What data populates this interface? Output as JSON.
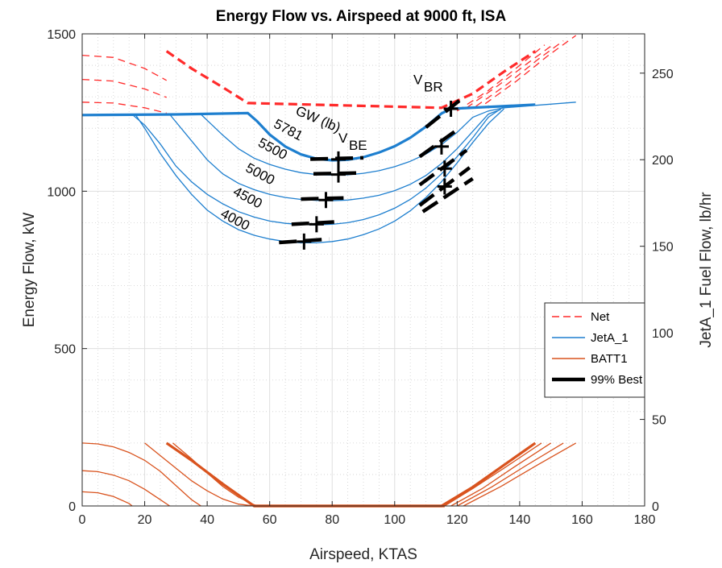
{
  "chart_data": {
    "type": "line",
    "title": "Energy Flow vs. Airspeed at 9000 ft, ISA",
    "xlabel": "Airspeed, KTAS",
    "ylabel": "Energy Flow, kW",
    "y2label": "JetA_1 Fuel Flow, lb/hr",
    "xlim": [
      0,
      180
    ],
    "ylim": [
      0,
      1500
    ],
    "y2lim": [
      0,
      272.7
    ],
    "x_ticks": [
      0,
      20,
      40,
      60,
      80,
      100,
      120,
      140,
      160,
      180
    ],
    "y_ticks": [
      0,
      500,
      1000,
      1500
    ],
    "y2_ticks": [
      0,
      50,
      100,
      150,
      200,
      250
    ],
    "grid": true,
    "minor_grid": true,
    "legend_position": "right",
    "colors": {
      "net": "#ff2a2a",
      "jeta": "#1e7fcf",
      "batt": "#d9531e",
      "best": "#000000"
    },
    "legend": [
      {
        "label": "Net",
        "style": "dashed",
        "color": "#ff2a2a"
      },
      {
        "label": "JetA_1",
        "style": "solid",
        "color": "#1e7fcf"
      },
      {
        "label": "BATT1",
        "style": "solid",
        "color": "#d9531e"
      },
      {
        "label": "99% Best",
        "style": "thick",
        "color": "#000000"
      }
    ],
    "annotations": {
      "gw_header": "GW (lb)",
      "gw_labels": [
        {
          "text": "5781",
          "x": 61,
          "y": 1205
        },
        {
          "text": "5500",
          "x": 56,
          "y": 1145
        },
        {
          "text": "5000",
          "x": 52,
          "y": 1065
        },
        {
          "text": "4500",
          "x": 48,
          "y": 990
        },
        {
          "text": "4000",
          "x": 44,
          "y": 920
        }
      ],
      "vbe": {
        "main": "V",
        "sub": "BE",
        "x": 82,
        "y": 1155
      },
      "vbr": {
        "main": "V",
        "sub": "BR",
        "x": 106,
        "y": 1340
      }
    },
    "net_series": [
      {
        "name": "5781",
        "x": [
          27,
          35,
          45,
          53,
          115,
          125,
          135,
          145
        ],
        "y": [
          1445,
          1390,
          1330,
          1280,
          1265,
          1310,
          1380,
          1445
        ]
      },
      {
        "name": "5500",
        "x": [
          0,
          10,
          20,
          27
        ],
        "y": [
          1432,
          1425,
          1390,
          1352
        ]
      },
      {
        "name": "5000",
        "x": [
          0,
          10,
          20,
          27
        ],
        "y": [
          1355,
          1350,
          1325,
          1298
        ]
      },
      {
        "name": "4500",
        "x": [
          0,
          10,
          20,
          27
        ],
        "y": [
          1283,
          1280,
          1265,
          1248
        ]
      },
      {
        "name": "5500-right",
        "x": [
          120,
          130,
          140,
          148
        ],
        "y": [
          1255,
          1320,
          1400,
          1465
        ]
      },
      {
        "name": "5000-right",
        "x": [
          123,
          133,
          143,
          151
        ],
        "y": [
          1265,
          1335,
          1410,
          1468
        ]
      },
      {
        "name": "4500-right",
        "x": [
          126,
          136,
          146,
          154
        ],
        "y": [
          1270,
          1340,
          1420,
          1478
        ]
      },
      {
        "name": "4000-right",
        "x": [
          129,
          139,
          149,
          158
        ],
        "y": [
          1278,
          1350,
          1430,
          1495
        ]
      }
    ],
    "jeta_series": [
      {
        "name": "5781",
        "x": [
          0,
          30,
          53,
          56,
          60,
          65,
          70,
          75,
          80,
          85,
          90,
          95,
          100,
          105,
          110,
          115,
          118,
          145
        ],
        "y": [
          1242,
          1244,
          1248,
          1222,
          1180,
          1142,
          1117,
          1103,
          1098,
          1100,
          1108,
          1123,
          1143,
          1170,
          1205,
          1247,
          1262,
          1275
        ]
      },
      {
        "name": "5500",
        "x": [
          38,
          45,
          50,
          55,
          60,
          65,
          70,
          75,
          80,
          85,
          90,
          95,
          100,
          105,
          110,
          115,
          120,
          125,
          130,
          135,
          158
        ],
        "y": [
          1244,
          1178,
          1135,
          1105,
          1085,
          1070,
          1059,
          1053,
          1051,
          1052,
          1057,
          1065,
          1078,
          1095,
          1118,
          1148,
          1187,
          1235,
          1255,
          1265,
          1283
        ]
      },
      {
        "name": "5000",
        "x": [
          28,
          35,
          40,
          45,
          50,
          55,
          60,
          65,
          70,
          75,
          80,
          85,
          90,
          95,
          100,
          105,
          110,
          115,
          120,
          125,
          130,
          134
        ],
        "y": [
          1244,
          1160,
          1100,
          1055,
          1025,
          1005,
          990,
          980,
          974,
          971,
          970,
          972,
          978,
          987,
          1002,
          1022,
          1050,
          1088,
          1135,
          1190,
          1245,
          1260
        ]
      },
      {
        "name": "4500",
        "x": [
          16,
          20,
          25,
          30,
          35,
          40,
          45,
          50,
          55,
          60,
          65,
          70,
          75,
          80,
          85,
          90,
          95,
          100,
          105,
          110,
          115,
          120,
          125,
          130,
          134
        ],
        "y": [
          1244,
          1210,
          1150,
          1080,
          1030,
          990,
          960,
          935,
          918,
          905,
          898,
          894,
          893,
          895,
          900,
          910,
          925,
          946,
          974,
          1010,
          1055,
          1110,
          1170,
          1235,
          1262
        ]
      },
      {
        "name": "4000",
        "x": [
          17,
          20,
          25,
          30,
          35,
          40,
          45,
          50,
          55,
          60,
          65,
          70,
          75,
          80,
          85,
          90,
          95,
          100,
          105,
          110,
          115,
          120,
          125,
          130,
          135
        ],
        "y": [
          1244,
          1200,
          1120,
          1050,
          990,
          940,
          905,
          878,
          860,
          848,
          840,
          836,
          836,
          840,
          848,
          862,
          880,
          905,
          938,
          980,
          1030,
          1090,
          1155,
          1215,
          1262
        ]
      }
    ],
    "batt_series": [
      {
        "name": "5781",
        "x": [
          27,
          35,
          45,
          55,
          115,
          125,
          135,
          145
        ],
        "y": [
          200,
          145,
          70,
          0,
          0,
          60,
          130,
          200
        ]
      },
      {
        "name": "5500-left",
        "x": [
          0,
          5,
          10,
          15,
          20,
          25,
          30,
          35,
          38
        ],
        "y": [
          200,
          197,
          188,
          170,
          145,
          110,
          65,
          20,
          0
        ]
      },
      {
        "name": "5000-left",
        "x": [
          0,
          5,
          10,
          15,
          20,
          25,
          28
        ],
        "y": [
          112,
          109,
          98,
          80,
          53,
          20,
          0
        ]
      },
      {
        "name": "4500-left",
        "x": [
          0,
          5,
          10,
          15,
          16
        ],
        "y": [
          45,
          42,
          30,
          8,
          0
        ]
      },
      {
        "name": "4500-mid",
        "x": [
          20,
          25,
          30,
          35,
          40,
          45,
          50,
          55
        ],
        "y": [
          200,
          160,
          120,
          80,
          48,
          22,
          6,
          0
        ]
      },
      {
        "name": "4000-mid",
        "x": [
          29,
          35,
          40,
          45,
          50,
          55,
          56
        ],
        "y": [
          200,
          150,
          105,
          62,
          28,
          4,
          0
        ]
      },
      {
        "name": "r1",
        "x": [
          116,
          125,
          135,
          147
        ],
        "y": [
          0,
          55,
          120,
          200
        ]
      },
      {
        "name": "r2",
        "x": [
          118,
          128,
          138,
          150
        ],
        "y": [
          0,
          55,
          122,
          200
        ]
      },
      {
        "name": "r3",
        "x": [
          120,
          131,
          142,
          154
        ],
        "y": [
          0,
          60,
          128,
          200
        ]
      },
      {
        "name": "r4",
        "x": [
          122,
          134,
          146,
          158
        ],
        "y": [
          0,
          62,
          132,
          200
        ]
      }
    ],
    "best_segments": [
      {
        "x": [
          73,
          90
        ],
        "y": [
          1102,
          1106
        ]
      },
      {
        "x": [
          110,
          121
        ],
        "y": [
          1203,
          1290
        ]
      },
      {
        "x": [
          74,
          89
        ],
        "y": [
          1055,
          1058
        ]
      },
      {
        "x": [
          108,
          120
        ],
        "y": [
          1110,
          1195
        ]
      },
      {
        "x": [
          70,
          86
        ],
        "y": [
          975,
          979
        ]
      },
      {
        "x": [
          108,
          123
        ],
        "y": [
          1020,
          1130
        ]
      },
      {
        "x": [
          67,
          82
        ],
        "y": [
          895,
          903
        ]
      },
      {
        "x": [
          108,
          124
        ],
        "y": [
          955,
          1075
        ]
      },
      {
        "x": [
          63,
          79
        ],
        "y": [
          837,
          848
        ]
      },
      {
        "x": [
          109,
          125
        ],
        "y": [
          935,
          1040
        ]
      }
    ],
    "best_markers": [
      {
        "x": 82,
        "y": 1101
      },
      {
        "x": 82,
        "y": 1053
      },
      {
        "x": 78,
        "y": 972
      },
      {
        "x": 75,
        "y": 895
      },
      {
        "x": 71,
        "y": 840
      },
      {
        "x": 118,
        "y": 1262
      },
      {
        "x": 115,
        "y": 1142
      },
      {
        "x": 116,
        "y": 1072
      },
      {
        "x": 116,
        "y": 1015
      }
    ]
  }
}
